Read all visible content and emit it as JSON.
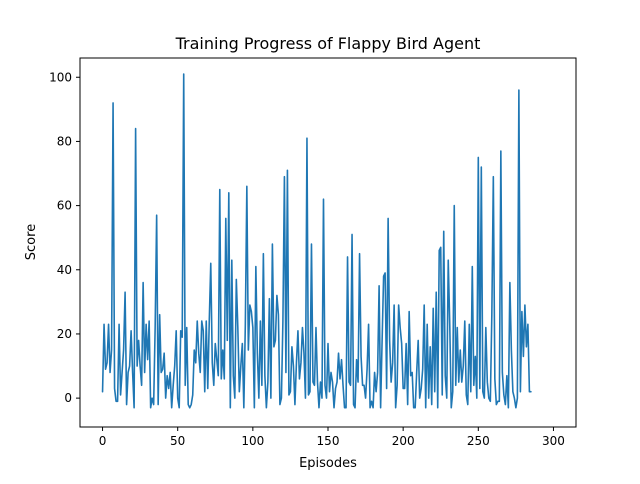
{
  "chart_data": {
    "type": "line",
    "title": "Training Progress of Flappy Bird Agent",
    "xlabel": "Episodes",
    "ylabel": "Score",
    "xlim": [
      -15,
      315
    ],
    "ylim": [
      -9,
      106
    ],
    "xticks": [
      0,
      50,
      100,
      150,
      200,
      250,
      300
    ],
    "yticks": [
      0,
      20,
      40,
      60,
      80,
      100
    ],
    "grid": false,
    "legend": "none",
    "line_color": "#1f77b4",
    "series": [
      {
        "values": [
          2,
          23,
          9,
          11,
          23,
          8,
          15,
          92,
          3,
          -1,
          -1,
          23,
          1,
          8,
          15,
          33,
          -2,
          8,
          10,
          21,
          8,
          -3,
          84,
          10,
          18,
          10,
          4,
          36,
          8,
          23,
          12,
          24,
          -3,
          0,
          -2,
          22,
          57,
          -2,
          26,
          8,
          9,
          14,
          0,
          7,
          3,
          8,
          -3,
          4,
          10,
          21,
          0,
          -3,
          21,
          19,
          101,
          4,
          22,
          -2,
          -3,
          -2,
          1,
          15,
          11,
          24,
          14,
          8,
          24,
          21,
          2,
          24,
          3,
          24,
          42,
          11,
          4,
          17,
          12,
          7,
          65,
          6,
          15,
          6,
          56,
          18,
          64,
          -3,
          43,
          7,
          0,
          37,
          22,
          2,
          10,
          17,
          -3,
          23,
          66,
          15,
          29,
          27,
          22,
          -3,
          41,
          14,
          0,
          24,
          4,
          45,
          7,
          -3,
          5,
          31,
          0,
          48,
          16,
          18,
          32,
          26,
          -2,
          0,
          24,
          69,
          8,
          71,
          1,
          2,
          16,
          10,
          -2,
          11,
          21,
          6,
          11,
          22,
          14,
          0,
          81,
          1,
          2,
          48,
          5,
          4,
          22,
          5,
          -3,
          5,
          0,
          62,
          4,
          0,
          17,
          2,
          8,
          5,
          -3,
          3,
          5,
          14,
          6,
          12,
          4,
          -3,
          -3,
          44,
          5,
          4,
          51,
          -2,
          -3,
          12,
          5,
          45,
          13,
          4,
          4,
          0,
          9,
          23,
          -3,
          -1,
          -3,
          8,
          2,
          8,
          35,
          -3,
          18,
          38,
          39,
          3,
          56,
          18,
          5,
          11,
          29,
          -3,
          4,
          29,
          22,
          17,
          3,
          3,
          17,
          -2,
          27,
          7,
          8,
          -3,
          -3,
          8,
          18,
          0,
          3,
          9,
          29,
          -3,
          23,
          0,
          16,
          -2,
          28,
          2,
          33,
          -3,
          46,
          47,
          1,
          52,
          7,
          0,
          43,
          23,
          -3,
          2,
          60,
          4,
          22,
          5,
          15,
          5,
          10,
          24,
          1,
          -2,
          23,
          2,
          41,
          4,
          13,
          0,
          75,
          3,
          72,
          2,
          0,
          22,
          5,
          0,
          -1,
          26,
          69,
          6,
          -2,
          -1,
          -1,
          77,
          8,
          1,
          -2,
          7,
          -3,
          36,
          15,
          2,
          0,
          -3,
          0,
          96,
          2,
          27,
          13,
          29,
          16,
          23,
          2,
          2
        ]
      }
    ]
  }
}
